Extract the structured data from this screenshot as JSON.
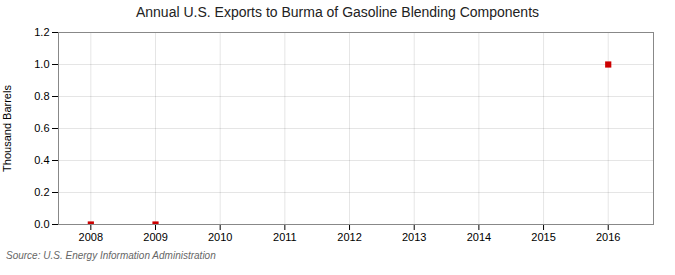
{
  "chart_data": {
    "type": "scatter",
    "title": "Annual U.S. Exports to Burma of Gasoline Blending Components",
    "ylabel": "Thousand Barrels",
    "source": "Source: U.S. Energy Information Administration",
    "x": [
      2016,
      2008,
      2009
    ],
    "values": [
      1.0,
      0.0,
      0.0
    ],
    "color": "#cc0000",
    "marker": "square",
    "xlim": [
      2007.5,
      2016.7
    ],
    "xticks": [
      2008,
      2009,
      2010,
      2011,
      2012,
      2013,
      2014,
      2015,
      2016
    ],
    "ylim": [
      0.0,
      1.2
    ],
    "yticks": [
      {
        "value": 0.0,
        "label": "0.0"
      },
      {
        "value": 0.2,
        "label": "0.2"
      },
      {
        "value": 0.4,
        "label": "0.4"
      },
      {
        "value": 0.6,
        "label": "0.6"
      },
      {
        "value": 0.8,
        "label": "0.8"
      },
      {
        "value": 1.0,
        "label": "1.0"
      },
      {
        "value": 1.2,
        "label": "1.2"
      }
    ],
    "grid": true
  }
}
